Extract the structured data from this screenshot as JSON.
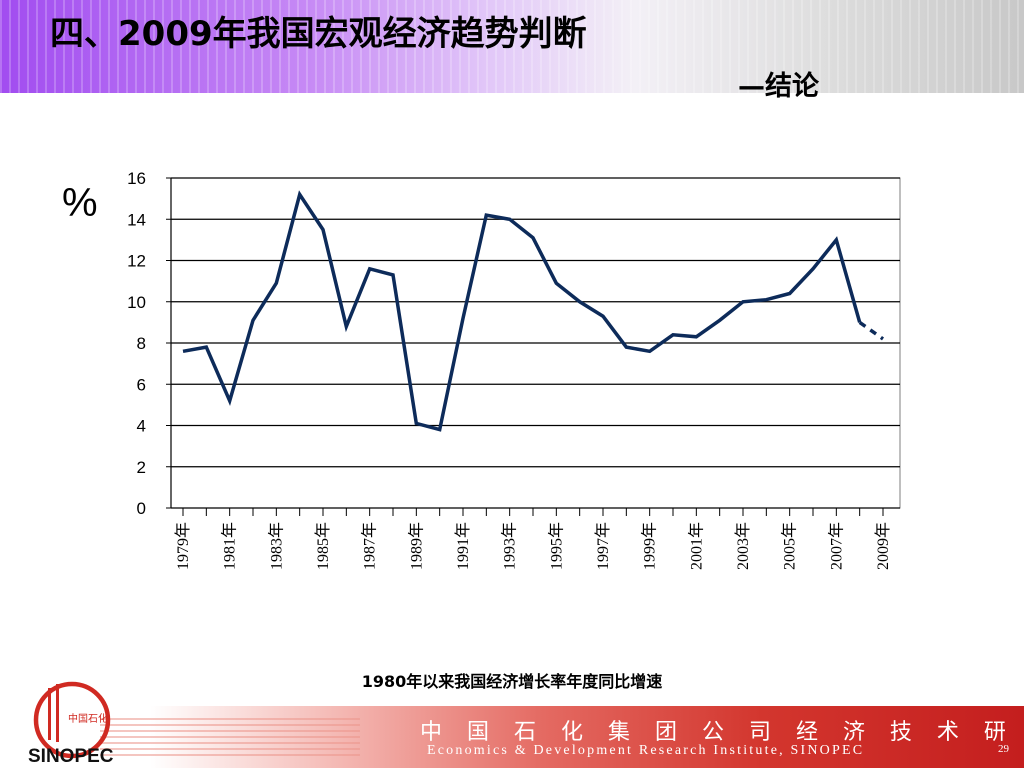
{
  "slide": {
    "title": "四、2009年我国宏观经济趋势判断",
    "subtitle": "—结论",
    "caption": "1980年以来我国经济增长率年度同比增速",
    "footer_cn": "中 国 石 化 集 团 公 司 经 济 技 术 研 究 院",
    "footer_en": "Economics & Development Research Institute, SINOPEC",
    "page_number": "29",
    "logo_text": "中国石化",
    "logo_brand": "SINOPEC",
    "colors": {
      "line": "#0d2b5a",
      "header_purple": "#a14cf0",
      "footer_red": "#c41e1e"
    }
  },
  "chart_data": {
    "type": "line",
    "unit_label": "%",
    "ylim": [
      0,
      16
    ],
    "yticks": [
      "0",
      "2",
      "4",
      "6",
      "8",
      "10",
      "12",
      "14",
      "16"
    ],
    "grid": true,
    "x": [
      "1979",
      "1980",
      "1981",
      "1982",
      "1983",
      "1984",
      "1985",
      "1986",
      "1987",
      "1988",
      "1989",
      "1990",
      "1991",
      "1992",
      "1993",
      "1994",
      "1995",
      "1996",
      "1997",
      "1998",
      "1999",
      "2000",
      "2001",
      "2002",
      "2003",
      "2004",
      "2005",
      "2006",
      "2007",
      "2008",
      "2009"
    ],
    "xticklabels": [
      "1979年",
      "1981年",
      "1983年",
      "1985年",
      "1987年",
      "1989年",
      "1991年",
      "1993年",
      "1995年",
      "1997年",
      "1999年",
      "2001年",
      "2003年",
      "2005年",
      "2007年",
      "2009年"
    ],
    "values": [
      7.6,
      7.8,
      5.2,
      9.1,
      10.9,
      15.2,
      13.5,
      8.8,
      11.6,
      11.3,
      4.1,
      3.8,
      9.2,
      14.2,
      14.0,
      13.1,
      10.9,
      10.0,
      9.3,
      7.8,
      7.6,
      8.4,
      8.3,
      9.1,
      10.0,
      10.1,
      10.4,
      11.6,
      13.0,
      9.0,
      8.2
    ],
    "projected_from_index": 29
  }
}
